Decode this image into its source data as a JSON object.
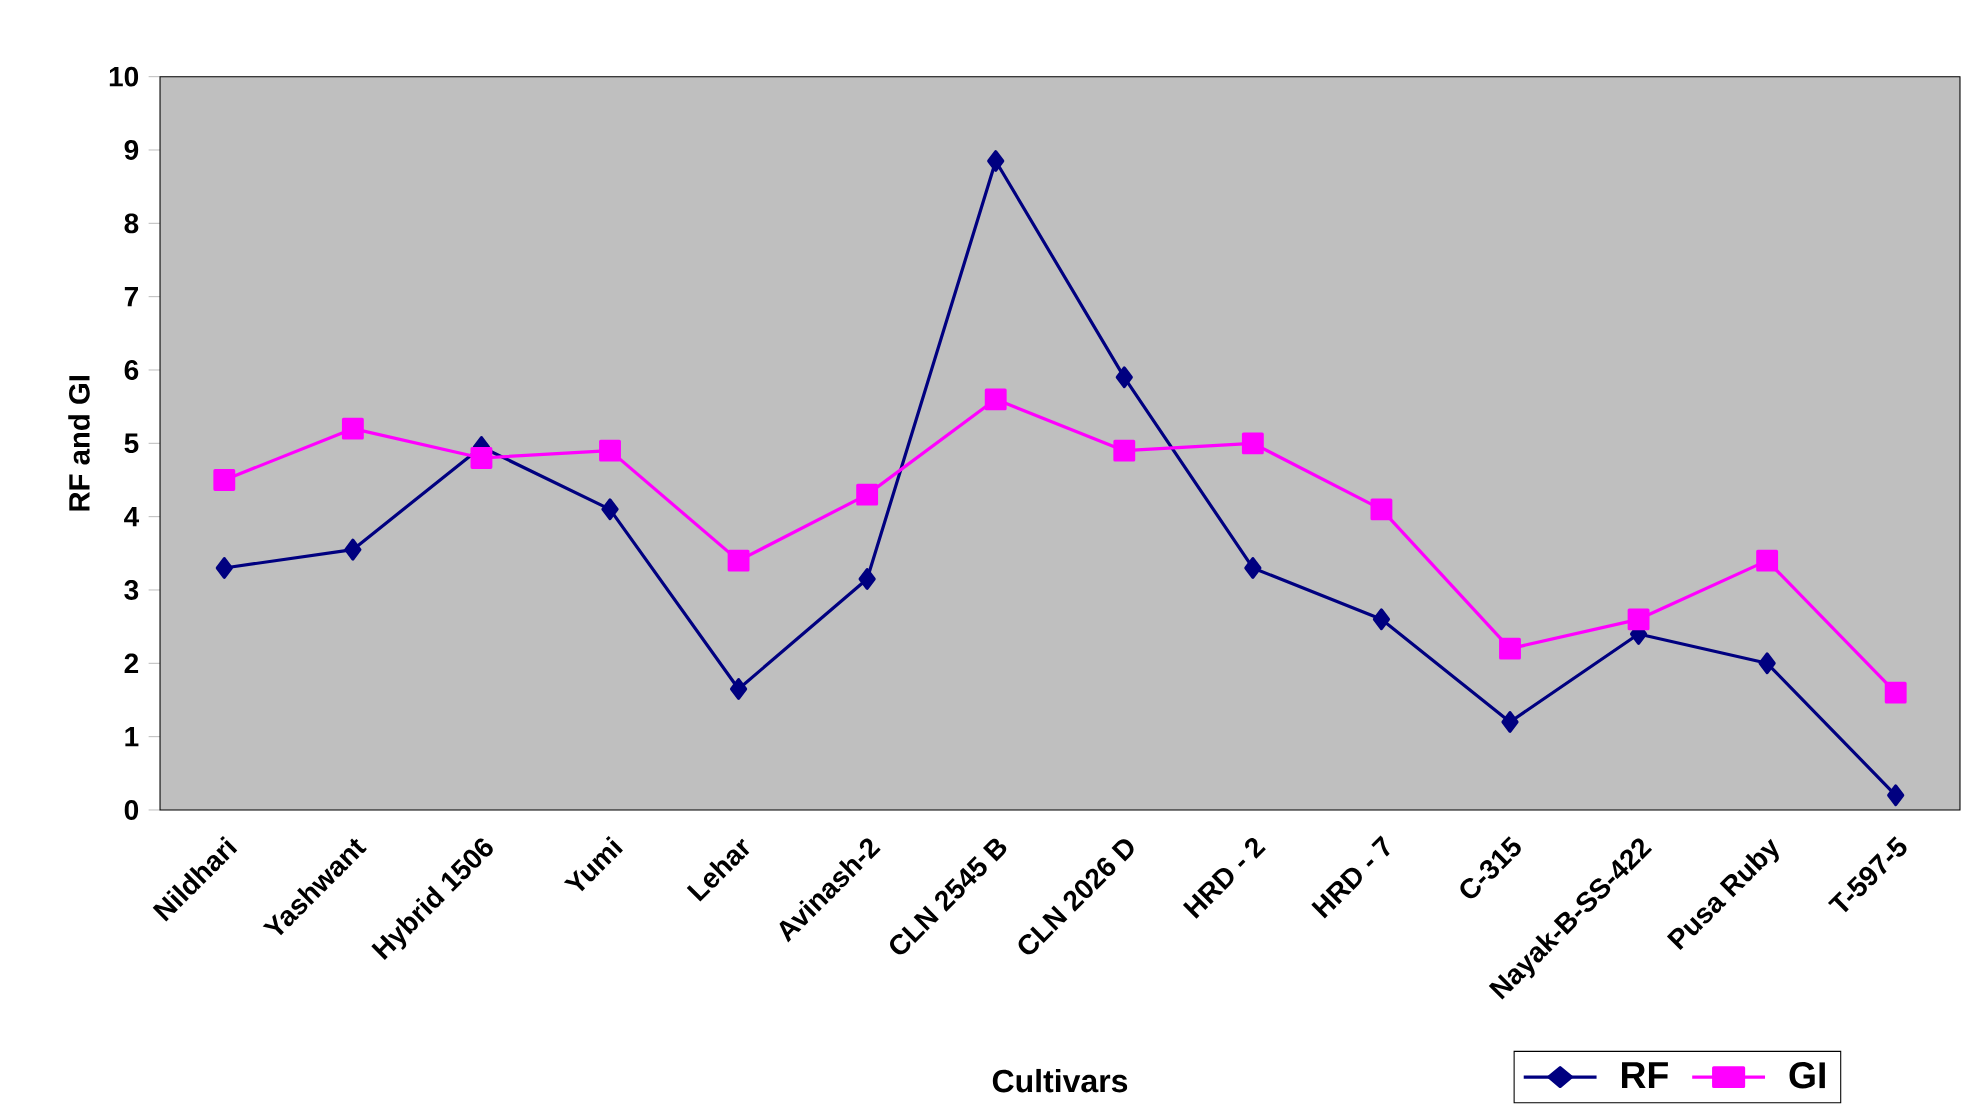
{
  "chart_data": {
    "type": "line",
    "xlabel": "Cultivars",
    "ylabel": "RF and GI",
    "categories": [
      "Nildhari",
      "Yashwant",
      "Hybrid 1506",
      "Yumi",
      "Lehar",
      "Avinash-2",
      "CLN 2545 B",
      "CLN 2026 D",
      "HRD - 2",
      "HRD - 7",
      "C-315",
      "Nayak-B-SS-422",
      "Pusa Ruby",
      "T-597-5"
    ],
    "series": [
      {
        "name": "RF",
        "color": "#000080",
        "marker": "diamond",
        "values": [
          3.3,
          3.55,
          4.95,
          4.1,
          1.65,
          3.15,
          8.85,
          5.9,
          3.3,
          2.6,
          1.2,
          2.4,
          2.0,
          0.2
        ]
      },
      {
        "name": "GI",
        "color": "#ff00ff",
        "marker": "square",
        "values": [
          4.5,
          5.2,
          4.8,
          4.9,
          3.4,
          4.3,
          5.6,
          4.9,
          5.0,
          4.1,
          2.2,
          2.6,
          3.4,
          1.6
        ]
      }
    ],
    "ylim": [
      0,
      10
    ],
    "yticks": [
      0,
      1,
      2,
      3,
      4,
      5,
      6,
      7,
      8,
      9,
      10
    ],
    "grid": false,
    "legend": "bottom right",
    "line_style": "solid"
  }
}
